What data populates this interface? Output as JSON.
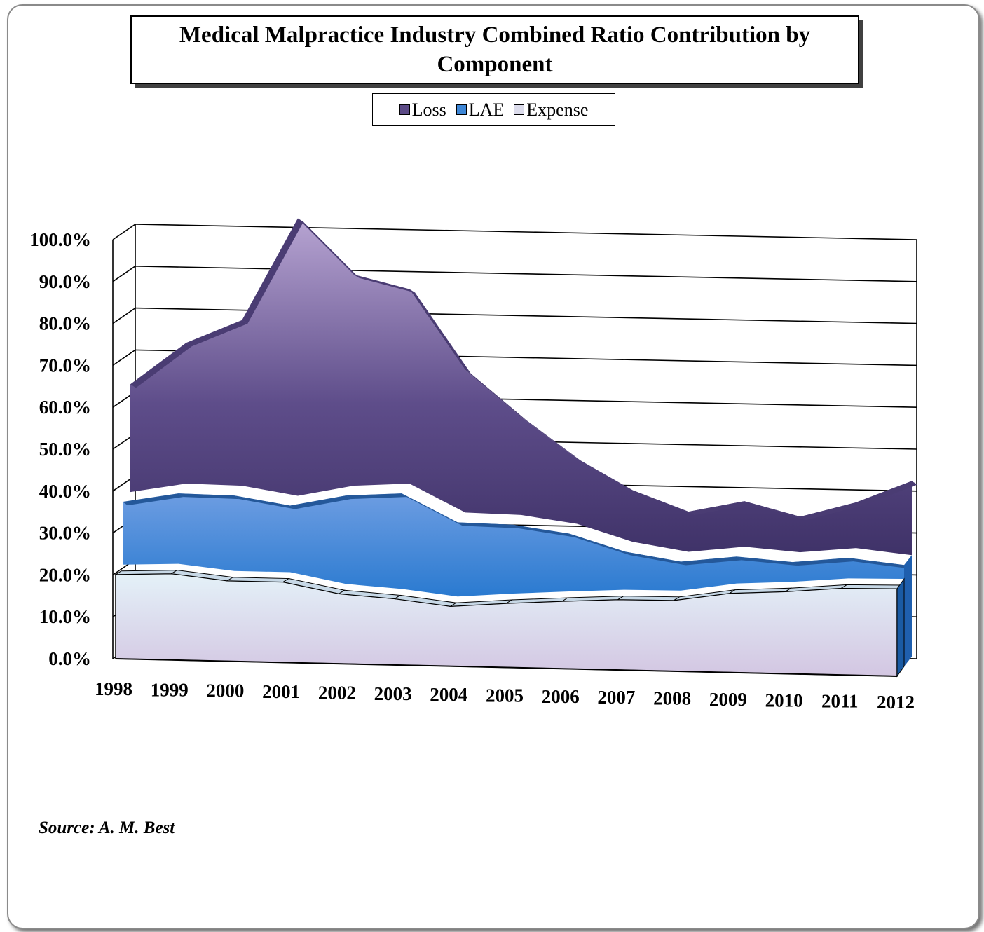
{
  "chart_data": {
    "type": "area",
    "stacked": true,
    "three_d": true,
    "title": "Medical Malpractice Industry Combined Ratio Contribution by Component",
    "categories": [
      "1998",
      "1999",
      "2000",
      "2001",
      "2002",
      "2003",
      "2004",
      "2005",
      "2006",
      "2007",
      "2008",
      "2009",
      "2010",
      "2011",
      "2012"
    ],
    "series": [
      {
        "name": "Loss",
        "color": "#5b4a86",
        "values": [
          25.7,
          33.6,
          39.5,
          66.2,
          50.4,
          46.4,
          34.0,
          23.4,
          15.6,
          12.3,
          9.6,
          10.9,
          8.5,
          10.9,
          17.7
        ]
      },
      {
        "name": "LAE",
        "color": "#3d86d6",
        "values": [
          15.0,
          16.8,
          18.0,
          15.9,
          21.1,
          22.8,
          17.7,
          16.4,
          13.8,
          9.1,
          6.9,
          6.4,
          4.7,
          4.9,
          3.3
        ]
      },
      {
        "name": "Expense",
        "color": "#dde8f3",
        "values": [
          20.1,
          20.6,
          19.2,
          19.2,
          16.7,
          15.8,
          14.3,
          15.3,
          16.1,
          16.8,
          16.9,
          18.9,
          19.6,
          20.7,
          20.9
        ]
      }
    ],
    "y_ticks": [
      "0.0%",
      "10.0%",
      "20.0%",
      "30.0%",
      "40.0%",
      "50.0%",
      "60.0%",
      "70.0%",
      "80.0%",
      "90.0%",
      "100.0%"
    ],
    "ylim": [
      0,
      100
    ],
    "grid": true,
    "legend_position": "top"
  },
  "title_lines": [
    "Medical Malpractice Industry Combined Ratio Contribution by",
    "Component"
  ],
  "source_text": "Source:  A. M. Best"
}
